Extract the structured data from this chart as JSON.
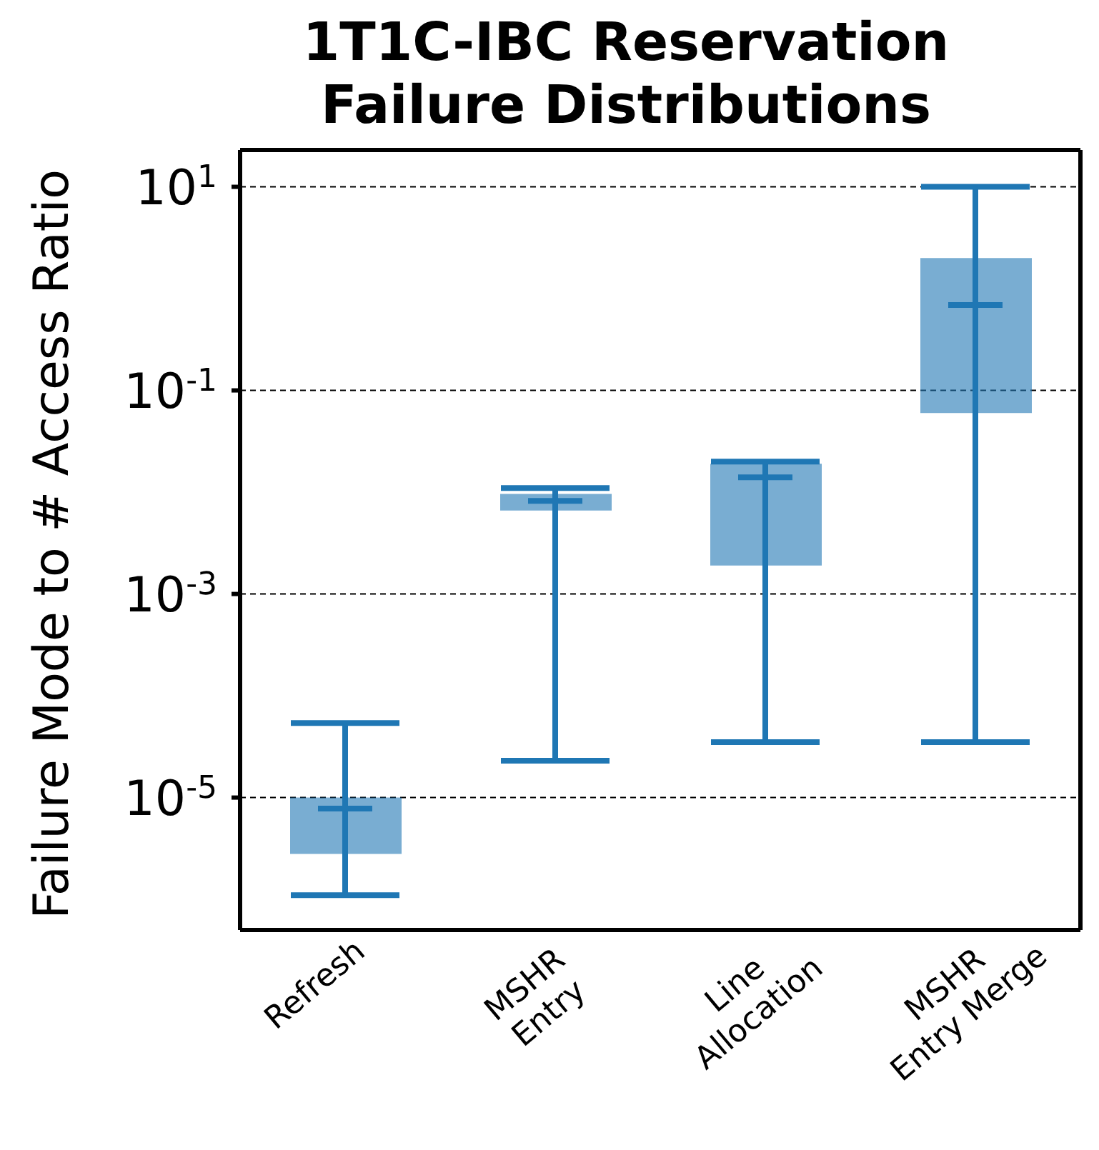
{
  "chart_data": {
    "type": "box",
    "title": "1T1C-IBC Reservation Failure Distributions",
    "ylabel": "Failure Mode to # Access Ratio",
    "categories": [
      "Refresh",
      "MSHR Entry",
      "Line Allocation",
      "MSHR Entry Merge"
    ],
    "series": [
      {
        "color": "#1f77b4",
        "boxes": [
          {
            "low": 1.1e-06,
            "q1": 2.8e-06,
            "median": 7.8e-06,
            "q3": 1e-05,
            "high": 5.4e-05
          },
          {
            "low": 2.3e-05,
            "q1": 0.0066,
            "median": 0.0082,
            "q3": 0.0096,
            "high": 0.011
          },
          {
            "low": 3.5e-05,
            "q1": 0.0019,
            "median": 0.014,
            "q3": 0.019,
            "high": 0.02
          },
          {
            "low": 3.5e-05,
            "q1": 0.06,
            "median": 0.69,
            "q3": 2,
            "high": 10
          }
        ]
      }
    ],
    "log": "y",
    "ylim": [
      5e-07,
      23
    ],
    "yticks": [
      {
        "value": 1e-05,
        "label": "10$^{-5}$"
      },
      {
        "value": 0.001,
        "label": "10$^{-3}$"
      },
      {
        "value": 0.1,
        "label": "10$^{-1}$"
      },
      {
        "value": 10,
        "label": "10$^{1}$"
      }
    ],
    "grid": "y"
  }
}
